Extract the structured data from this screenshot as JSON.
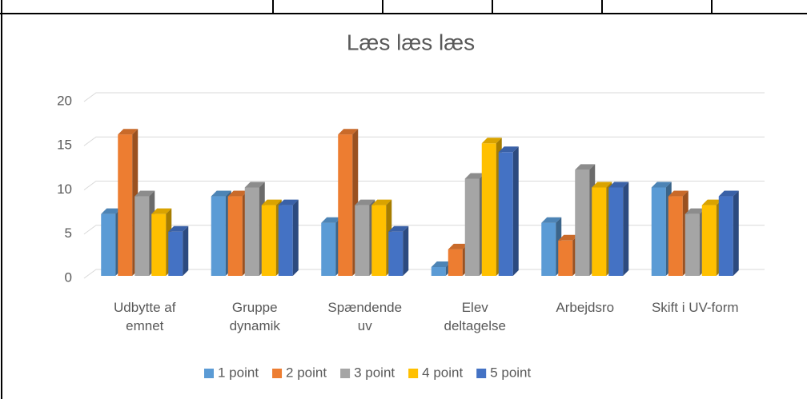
{
  "chart_data": {
    "type": "bar",
    "title": "Læs læs læs",
    "categories": [
      "Udbytte af emnet",
      "Gruppe dynamik",
      "Spændende uv",
      "Elev deltagelse",
      "Arbejdsro",
      "Skift i UV-form"
    ],
    "series": [
      {
        "name": "1 point",
        "color": "#5b9bd5",
        "values": [
          7,
          9,
          6,
          1,
          6,
          10
        ]
      },
      {
        "name": "2 point",
        "color": "#ed7d31",
        "values": [
          16,
          9,
          16,
          3,
          4,
          9
        ]
      },
      {
        "name": "3 point",
        "color": "#a5a5a5",
        "values": [
          9,
          10,
          8,
          11,
          12,
          7
        ]
      },
      {
        "name": "4 point",
        "color": "#ffc000",
        "values": [
          7,
          8,
          8,
          15,
          10,
          8
        ]
      },
      {
        "name": "5 point",
        "color": "#4472c4",
        "values": [
          5,
          8,
          5,
          14,
          10,
          9
        ]
      }
    ],
    "ylim": [
      0,
      20
    ],
    "yticks": [
      0,
      5,
      10,
      15,
      20
    ],
    "grid": true,
    "legend": "bottom"
  }
}
